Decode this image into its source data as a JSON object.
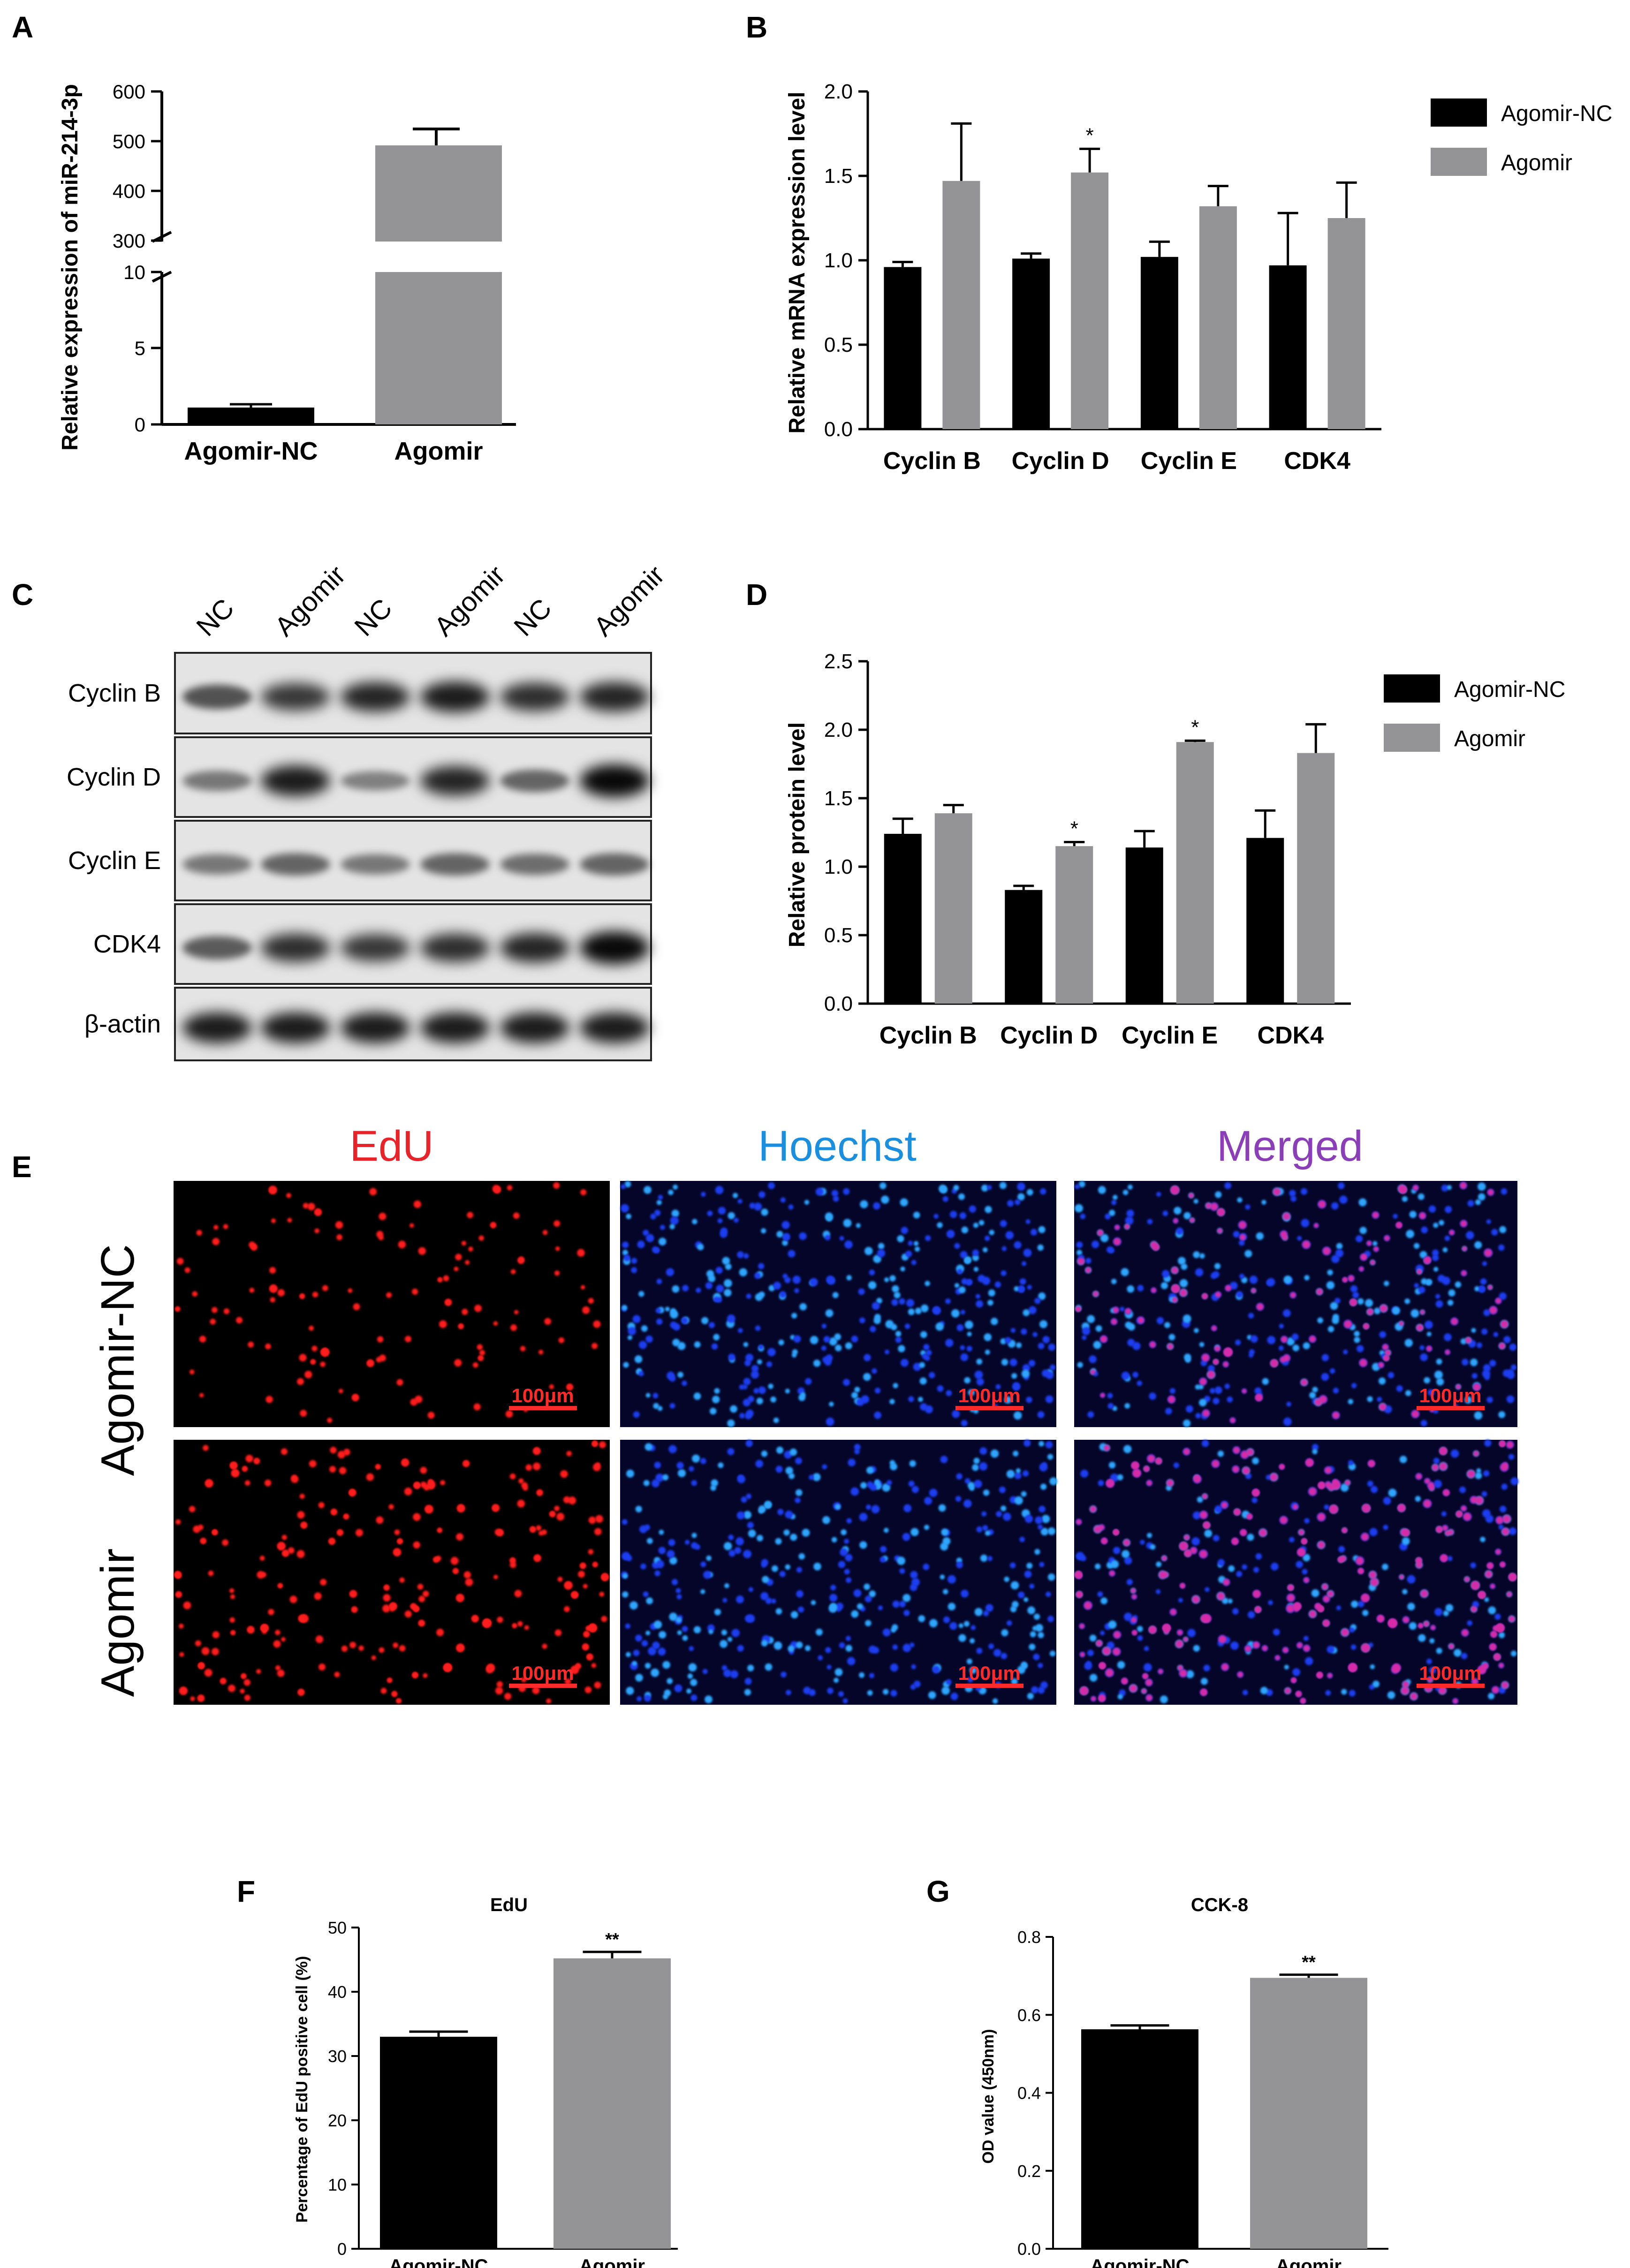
{
  "panels": {
    "A": {
      "letter": "A",
      "chart_data": {
        "type": "bar",
        "categories": [
          "Agomir-NC",
          "Agomir"
        ],
        "values": [
          1.1,
          490
        ],
        "errors": [
          0.2,
          35
        ],
        "colors": [
          "#000000",
          "#949497"
        ],
        "ylabel": "Relative expression of miR-214-3p",
        "yaxis_break": true,
        "lower_segment": {
          "ylim": [
            0,
            10
          ],
          "ticks": [
            "0",
            "5",
            "10"
          ]
        },
        "upper_segment": {
          "ylim": [
            300,
            600
          ],
          "ticks": [
            "300",
            "400",
            "500",
            "600"
          ]
        }
      }
    },
    "B": {
      "letter": "B",
      "chart_data": {
        "type": "bar",
        "categories": [
          "Cyclin B",
          "Cyclin D",
          "Cyclin E",
          "CDK4"
        ],
        "series": [
          {
            "name": "Agomir-NC",
            "color": "#000000",
            "values": [
              0.96,
              1.01,
              1.02,
              0.97
            ],
            "errors": [
              0.03,
              0.03,
              0.09,
              0.31
            ]
          },
          {
            "name": "Agomir",
            "color": "#949497",
            "values": [
              1.47,
              1.52,
              1.32,
              1.25
            ],
            "errors": [
              0.34,
              0.14,
              0.12,
              0.21
            ]
          }
        ],
        "ylabel": "Relative mRNA expression level",
        "ylim": [
          0,
          2.0
        ],
        "ticks": [
          "0.0",
          "0.5",
          "1.0",
          "1.5",
          "2.0"
        ],
        "annotations": [
          {
            "category": "Cyclin D",
            "series": "Agomir",
            "text": "*"
          }
        ],
        "legend": "top-right"
      }
    },
    "C": {
      "letter": "C",
      "lane_labels": [
        "NC",
        "Agomir",
        "NC",
        "Agomir",
        "NC",
        "Agomir"
      ],
      "blots": [
        {
          "label": "Cyclin B",
          "intensities": [
            0.55,
            0.7,
            0.8,
            0.85,
            0.75,
            0.8
          ]
        },
        {
          "label": "Cyclin D",
          "intensities": [
            0.35,
            0.85,
            0.3,
            0.8,
            0.45,
            0.95
          ]
        },
        {
          "label": "Cyclin E",
          "intensities": [
            0.35,
            0.45,
            0.35,
            0.45,
            0.4,
            0.45
          ]
        },
        {
          "label": "CDK4",
          "intensities": [
            0.5,
            0.75,
            0.7,
            0.75,
            0.8,
            0.95
          ]
        },
        {
          "label": "β-actin",
          "intensities": [
            0.85,
            0.85,
            0.85,
            0.85,
            0.85,
            0.85
          ]
        }
      ]
    },
    "D": {
      "letter": "D",
      "chart_data": {
        "type": "bar",
        "categories": [
          "Cyclin B",
          "Cyclin D",
          "Cyclin E",
          "CDK4"
        ],
        "series": [
          {
            "name": "Agomir-NC",
            "color": "#000000",
            "values": [
              1.24,
              0.83,
              1.14,
              1.21
            ],
            "errors": [
              0.11,
              0.03,
              0.12,
              0.2
            ]
          },
          {
            "name": "Agomir",
            "color": "#949497",
            "values": [
              1.39,
              1.15,
              1.91,
              1.83
            ],
            "errors": [
              0.06,
              0.03,
              0.01,
              0.21
            ]
          }
        ],
        "ylabel": "Relative protein level",
        "ylim": [
          0,
          2.5
        ],
        "ticks": [
          "0.0",
          "0.5",
          "1.0",
          "1.5",
          "2.0",
          "2.5"
        ],
        "annotations": [
          {
            "category": "Cyclin D",
            "series": "Agomir",
            "text": "*"
          },
          {
            "category": "Cyclin E",
            "series": "Agomir",
            "text": "*"
          }
        ],
        "legend": "top-right"
      }
    },
    "E": {
      "letter": "E",
      "column_titles": [
        "EdU",
        "Hoechst",
        "Merged"
      ],
      "column_title_colors": [
        "#e8232a",
        "#1a8fe0",
        "#8a3fb8"
      ],
      "row_labels": [
        "Agomir-NC",
        "Agomir"
      ],
      "scale_bar": "100μm"
    },
    "F": {
      "letter": "F",
      "chart_data": {
        "type": "bar",
        "title": "EdU",
        "categories": [
          "Agomir-NC",
          "Agomir"
        ],
        "values": [
          33,
          45.2
        ],
        "errors": [
          0.8,
          1.0
        ],
        "colors": [
          "#000000",
          "#949497"
        ],
        "ylabel": "Percentage of EdU positive cell (%)",
        "ylim": [
          0,
          50
        ],
        "ticks": [
          "0",
          "10",
          "20",
          "30",
          "40",
          "50"
        ],
        "annotations": [
          {
            "category": "Agomir",
            "text": "**"
          }
        ]
      }
    },
    "G": {
      "letter": "G",
      "chart_data": {
        "type": "bar",
        "title": "CCK-8",
        "categories": [
          "Agomir-NC",
          "Agomir"
        ],
        "values": [
          0.563,
          0.695
        ],
        "errors": [
          0.01,
          0.008
        ],
        "colors": [
          "#000000",
          "#949497"
        ],
        "ylabel": "OD value (450nm)",
        "ylim": [
          0,
          0.8
        ],
        "ticks": [
          "0.0",
          "0.2",
          "0.4",
          "0.6",
          "0.8"
        ],
        "annotations": [
          {
            "category": "Agomir",
            "text": "**"
          }
        ]
      }
    }
  }
}
